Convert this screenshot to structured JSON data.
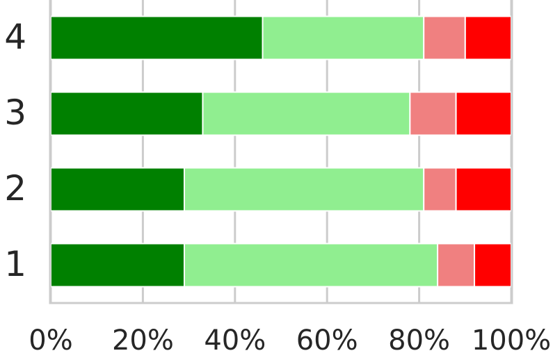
{
  "chart_data": {
    "type": "stacked-bar-horizontal",
    "categories": [
      "1",
      "2",
      "3",
      "4"
    ],
    "series": [
      {
        "color": "#008000",
        "values": [
          29,
          29,
          33,
          46
        ]
      },
      {
        "color": "#90ee90",
        "values": [
          55,
          52,
          45,
          35
        ]
      },
      {
        "color": "#f08080",
        "values": [
          8,
          7,
          10,
          9
        ]
      },
      {
        "color": "#ff0000",
        "values": [
          8,
          12,
          12,
          10
        ]
      }
    ],
    "xlim": [
      0,
      100
    ],
    "xticks": [
      {
        "value": 0,
        "label": "0%"
      },
      {
        "value": 20,
        "label": "20%"
      },
      {
        "value": 40,
        "label": "40%"
      },
      {
        "value": 60,
        "label": "60%"
      },
      {
        "value": 80,
        "label": "80%"
      },
      {
        "value": 100,
        "label": "100%"
      }
    ],
    "grid": true
  }
}
